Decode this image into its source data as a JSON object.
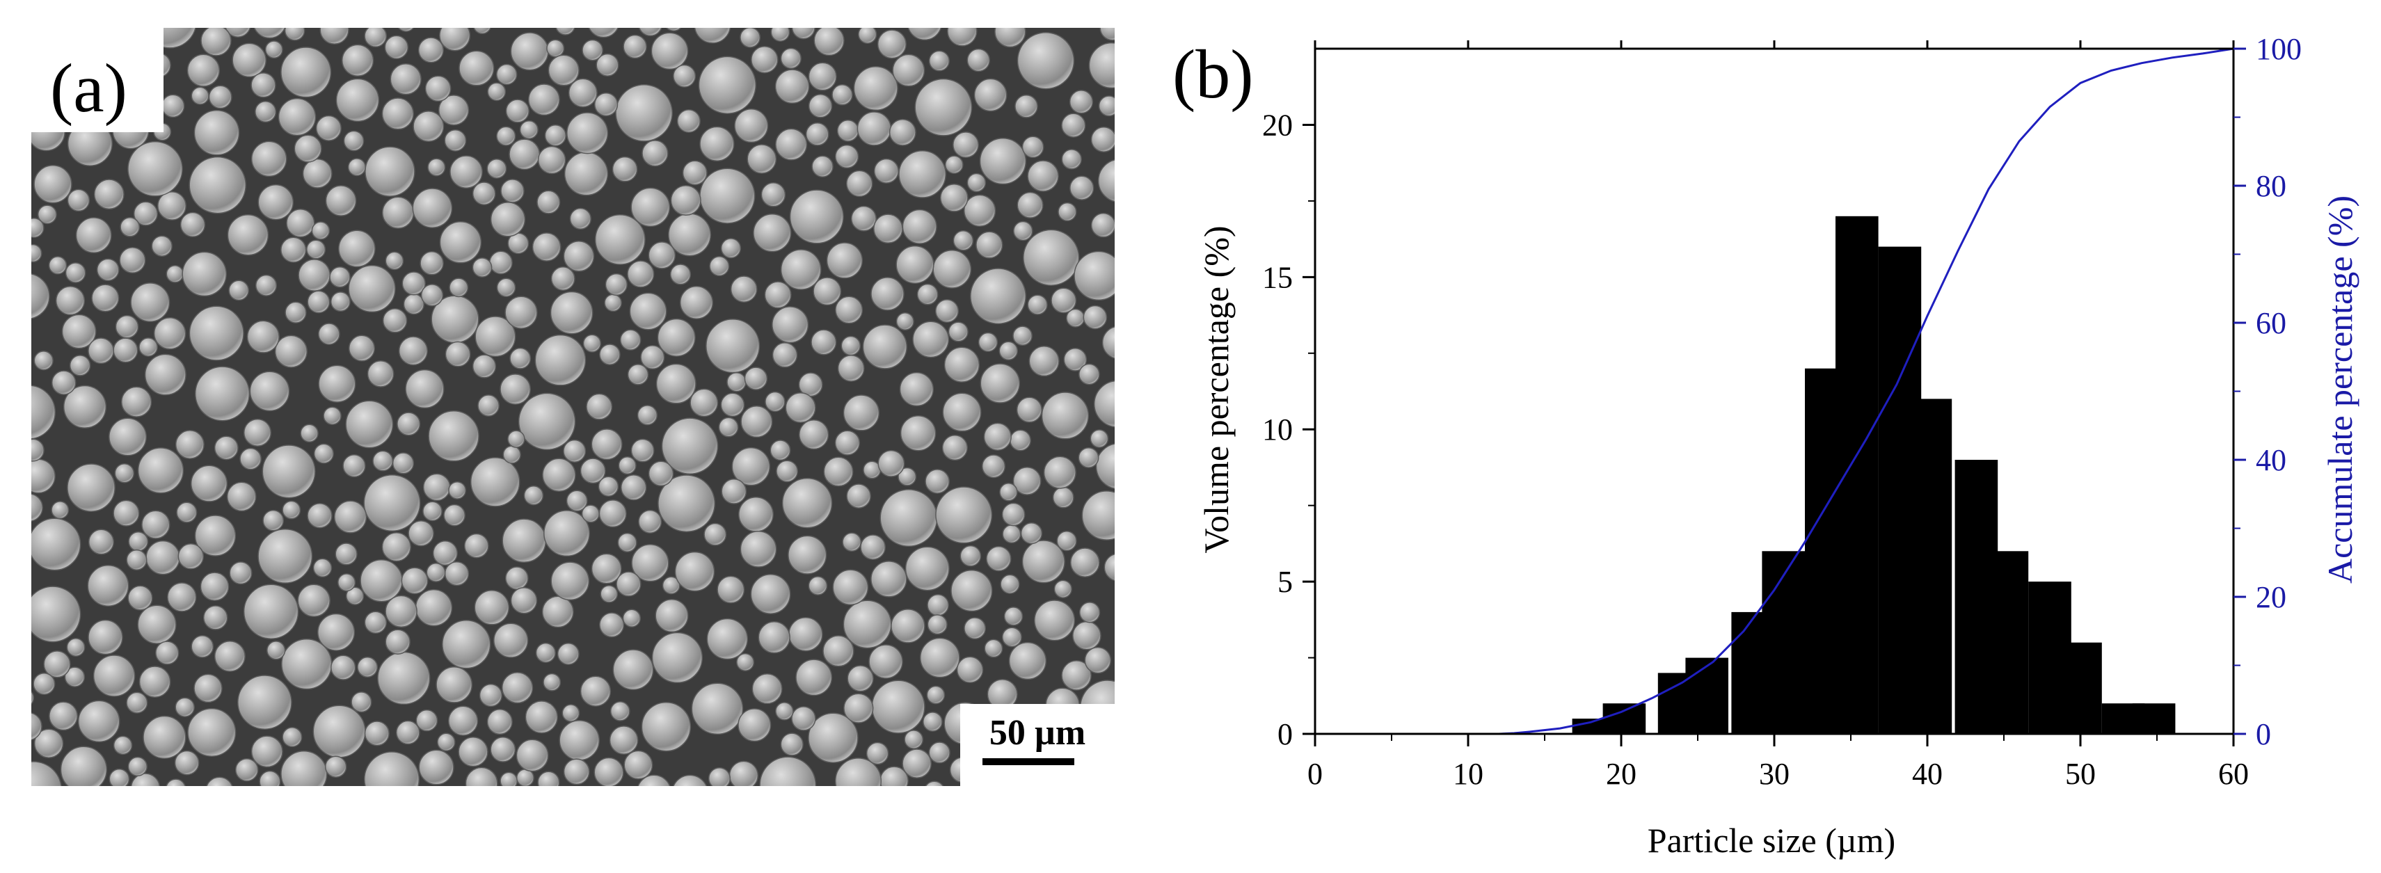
{
  "panel_a": {
    "label": "(a)",
    "scale_bar_label": "50 µm",
    "colors": {
      "background": "#3a3a3a",
      "particle": "#a9a9a9"
    }
  },
  "panel_b": {
    "label": "(b)",
    "colors": {
      "bars": "#000000",
      "curve": "#1f1fbf",
      "right_axis": "#1a1aa6"
    }
  },
  "chart_data": {
    "type": "bar",
    "title": "",
    "xlabel": "Particle size (µm)",
    "ylabel": "Volume percentage (%)",
    "y2label": "Accumulate percentage (%)",
    "xlim": [
      0,
      60
    ],
    "ylim": [
      0,
      22.5
    ],
    "y2lim": [
      0,
      100
    ],
    "xticks": [
      0,
      10,
      20,
      30,
      40,
      50,
      60
    ],
    "yticks": [
      0,
      5,
      10,
      15,
      20
    ],
    "y2ticks": [
      0,
      20,
      40,
      60,
      80,
      100
    ],
    "grid": false,
    "bin_width": 2.8,
    "bars": [
      {
        "x": 18.2,
        "value": 0.5
      },
      {
        "x": 20.2,
        "value": 1.0
      },
      {
        "x": 23.8,
        "value": 2.0
      },
      {
        "x": 25.6,
        "value": 2.5
      },
      {
        "x": 28.6,
        "value": 4.0
      },
      {
        "x": 30.6,
        "value": 6.0
      },
      {
        "x": 33.4,
        "value": 12.0
      },
      {
        "x": 35.4,
        "value": 17.0
      },
      {
        "x": 38.2,
        "value": 16.0
      },
      {
        "x": 40.2,
        "value": 11.0
      },
      {
        "x": 43.2,
        "value": 9.0
      },
      {
        "x": 45.2,
        "value": 6.0
      },
      {
        "x": 48.0,
        "value": 5.0
      },
      {
        "x": 50.0,
        "value": 3.0
      },
      {
        "x": 52.8,
        "value": 1.0
      },
      {
        "x": 54.8,
        "value": 1.0
      }
    ],
    "cumulative": {
      "x": [
        12,
        13,
        14,
        16,
        18,
        20,
        22,
        24,
        26,
        28,
        30,
        32,
        34,
        36,
        38,
        40,
        42,
        44,
        46,
        48,
        50,
        52,
        54,
        56,
        58,
        60
      ],
      "y": [
        0,
        0.1,
        0.3,
        0.8,
        1.7,
        3.2,
        5.2,
        7.5,
        10.5,
        15,
        21,
        28,
        35.5,
        43,
        51,
        61,
        70.5,
        79.5,
        86.5,
        91.5,
        95,
        96.8,
        97.9,
        98.7,
        99.3,
        100
      ]
    }
  }
}
